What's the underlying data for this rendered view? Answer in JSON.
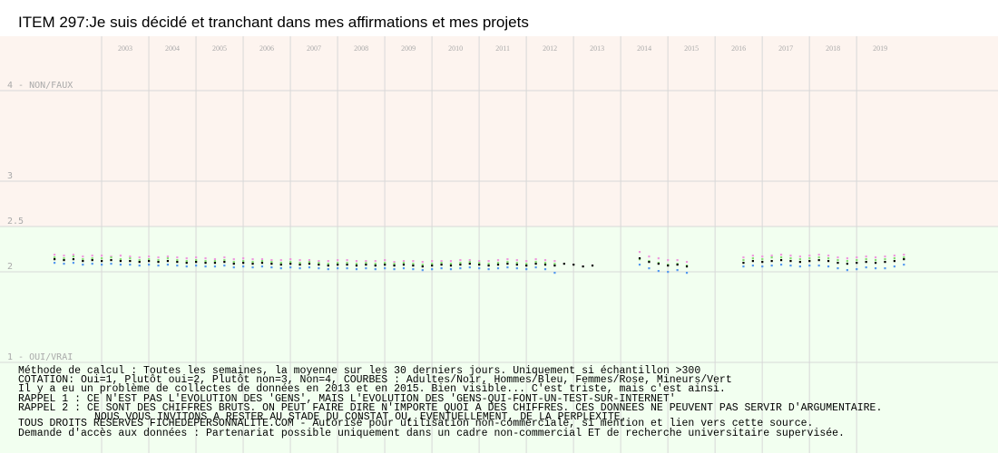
{
  "chart_data": {
    "type": "scatter",
    "title": "ITEM 297:Je suis décidé et tranchant dans mes affirmations et mes projets",
    "notes": [
      "Méthode de calcul : Toutes les semaines, la moyenne sur les 30 derniers jours. Uniquement si échantillon >300",
      "COTATION: Oui=1, Plutôt oui=2, Plutôt non=3, Non=4, COURBES : Adultes/Noir, Hommes/Bleu, Femmes/Rose, Mineurs/Vert",
      "Il y a eu un problème de collectes de données en 2013 et en 2015. Bien visible... C'est triste, mais c'est ainsi.",
      "RAPPEL 1 : CE N'EST PAS L'EVOLUTION DES 'GENS', MAIS L'EVOLUTION DES 'GENS-QUI-FONT-UN-TEST-SUR-INTERNET'",
      "RAPPEL 2 : CE SONT DES CHIFFRES BRUTS. ON PEUT FAIRE DIRE N'IMPORTE QUOI A DES CHIFFRES. CES DONNEES NE PEUVENT PAS SERVIR D'ARGUMENTAIRE.",
      "NOUS VOUS INVITONS A RESTER AU STADE DU CONSTAT OU, EVENTUELLEMENT,  DE LA PERPLEXITE.",
      "TOUS DROITS RESERVES FICHEDEPERSONNALITE.COM - Autorisé pour utilisation non-commerciale, si mention et lien vers cette source.",
      "Demande d'accès aux données : Partenariat possible uniquement dans un cadre non-commercial ET de recherche universitaire supervisée."
    ],
    "x": [
      2002.0,
      2002.2,
      2002.4,
      2002.6,
      2002.8,
      2003.0,
      2003.2,
      2003.4,
      2003.6,
      2003.8,
      2004.0,
      2004.2,
      2004.4,
      2004.6,
      2004.8,
      2005.0,
      2005.2,
      2005.4,
      2005.6,
      2005.8,
      2006.0,
      2006.2,
      2006.4,
      2006.6,
      2006.8,
      2007.0,
      2007.2,
      2007.4,
      2007.6,
      2007.8,
      2008.0,
      2008.2,
      2008.4,
      2008.6,
      2008.8,
      2009.0,
      2009.2,
      2009.4,
      2009.6,
      2009.8,
      2010.0,
      2010.2,
      2010.4,
      2010.6,
      2010.8,
      2011.0,
      2011.2,
      2011.4,
      2011.6,
      2011.8,
      2012.0,
      2012.2,
      2012.4,
      2012.6,
      2012.8,
      2013.0,
      2013.2,
      2013.4,
      2013.6,
      2013.8,
      2014.0,
      2014.2,
      2014.4,
      2014.6,
      2014.8,
      2015.0,
      2015.2,
      2015.4,
      2015.6,
      2015.8,
      2016.0,
      2016.2,
      2016.4,
      2016.6,
      2016.8,
      2017.0,
      2017.2,
      2017.4,
      2017.6,
      2017.8,
      2018.0,
      2018.2,
      2018.4,
      2018.6,
      2018.8,
      2019.0,
      2019.2,
      2019.4,
      2019.6,
      2019.8,
      2020.0
    ],
    "series": [
      {
        "color": "#ee99dd",
        "values": [
          2.19,
          2.18,
          2.19,
          2.17,
          2.18,
          2.18,
          2.17,
          2.18,
          2.17,
          2.16,
          2.17,
          2.16,
          2.17,
          2.16,
          2.15,
          2.16,
          2.15,
          2.14,
          2.16,
          2.14,
          2.15,
          2.14,
          2.14,
          2.13,
          2.13,
          2.14,
          2.13,
          2.13,
          2.12,
          2.12,
          2.13,
          2.13,
          2.12,
          2.12,
          2.12,
          2.13,
          2.11,
          2.12,
          2.12,
          2.11,
          2.12,
          2.12,
          2.12,
          2.13,
          2.13,
          2.12,
          2.12,
          2.13,
          2.14,
          2.13,
          2.12,
          2.14,
          2.13,
          2.12,
          null,
          null,
          null,
          null,
          null,
          null,
          null,
          null,
          2.22,
          2.17,
          2.15,
          2.13,
          2.13,
          2.11,
          null,
          null,
          null,
          null,
          null,
          2.16,
          2.18,
          2.17,
          2.18,
          2.19,
          2.18,
          2.17,
          2.18,
          2.19,
          2.18,
          2.16,
          2.15,
          2.16,
          2.17,
          2.16,
          2.17,
          2.18,
          2.19
        ]
      },
      {
        "color": "#88dd77",
        "values": [
          2.16,
          2.15,
          2.17,
          2.14,
          2.15,
          2.15,
          2.16,
          2.14,
          2.15,
          2.13,
          2.14,
          2.13,
          2.15,
          2.13,
          2.12,
          2.13,
          2.12,
          2.12,
          2.13,
          2.11,
          2.12,
          2.11,
          2.12,
          2.11,
          2.1,
          2.11,
          2.1,
          2.11,
          2.1,
          2.09,
          2.1,
          2.1,
          2.09,
          2.1,
          2.09,
          2.1,
          2.09,
          2.1,
          2.09,
          2.08,
          2.09,
          2.1,
          2.09,
          2.1,
          2.11,
          2.1,
          2.09,
          2.1,
          2.11,
          2.1,
          2.09,
          2.11,
          2.1,
          2.09,
          null,
          null,
          null,
          null,
          null,
          null,
          null,
          null,
          2.14,
          2.12,
          2.1,
          2.08,
          2.09,
          2.07,
          null,
          null,
          null,
          null,
          null,
          2.13,
          2.15,
          2.14,
          2.16,
          2.16,
          2.15,
          2.14,
          2.15,
          2.16,
          2.15,
          2.13,
          2.12,
          2.13,
          2.14,
          2.13,
          2.14,
          2.15,
          2.16
        ]
      },
      {
        "color": "#5599ee",
        "values": [
          2.1,
          2.09,
          2.1,
          2.08,
          2.09,
          2.08,
          2.09,
          2.08,
          2.08,
          2.07,
          2.08,
          2.07,
          2.08,
          2.07,
          2.06,
          2.07,
          2.06,
          2.06,
          2.07,
          2.05,
          2.06,
          2.05,
          2.06,
          2.05,
          2.04,
          2.05,
          2.04,
          2.05,
          2.04,
          2.03,
          2.04,
          2.04,
          2.03,
          2.04,
          2.03,
          2.04,
          2.03,
          2.04,
          2.03,
          2.02,
          2.03,
          2.04,
          2.03,
          2.04,
          2.05,
          2.04,
          2.03,
          2.04,
          2.05,
          2.04,
          2.03,
          2.05,
          2.03,
          1.99,
          null,
          null,
          null,
          null,
          null,
          null,
          null,
          null,
          2.08,
          2.04,
          2.01,
          2.0,
          2.02,
          1.99,
          null,
          null,
          null,
          null,
          null,
          2.06,
          2.07,
          2.06,
          2.07,
          2.08,
          2.07,
          2.06,
          2.07,
          2.07,
          2.06,
          2.04,
          2.02,
          2.03,
          2.05,
          2.04,
          2.04,
          2.06,
          2.08
        ]
      },
      {
        "color": "#000000",
        "values": [
          2.14,
          2.13,
          2.14,
          2.12,
          2.13,
          2.12,
          2.13,
          2.12,
          2.12,
          2.11,
          2.12,
          2.11,
          2.12,
          2.11,
          2.1,
          2.11,
          2.1,
          2.1,
          2.11,
          2.09,
          2.1,
          2.09,
          2.1,
          2.09,
          2.08,
          2.09,
          2.08,
          2.09,
          2.08,
          2.07,
          2.08,
          2.08,
          2.07,
          2.08,
          2.07,
          2.08,
          2.07,
          2.08,
          2.07,
          2.06,
          2.07,
          2.08,
          2.07,
          2.08,
          2.09,
          2.08,
          2.07,
          2.08,
          2.09,
          2.08,
          2.07,
          2.09,
          2.08,
          2.07,
          2.09,
          2.08,
          2.06,
          2.07,
          null,
          null,
          null,
          null,
          2.15,
          2.11,
          2.09,
          2.07,
          2.08,
          2.06,
          null,
          null,
          null,
          null,
          null,
          2.1,
          2.12,
          2.11,
          2.12,
          2.13,
          2.12,
          2.11,
          2.12,
          2.13,
          2.12,
          2.1,
          2.09,
          2.1,
          2.11,
          2.1,
          2.11,
          2.12,
          2.14
        ]
      }
    ],
    "xlim": [
      2001,
      2021.9
    ],
    "xticks": [
      2003,
      2004,
      2005,
      2006,
      2007,
      2008,
      2009,
      2010,
      2011,
      2012,
      2013,
      2014,
      2015,
      2016,
      2017,
      2018,
      2019
    ],
    "ylim": [
      0,
      4.6
    ],
    "yticks": [
      {
        "value": 4,
        "label": "4 - NON/FAUX"
      },
      3,
      2.5,
      2,
      {
        "value": 1,
        "label": "1 - OUI/VRAI"
      }
    ],
    "grid": true
  }
}
